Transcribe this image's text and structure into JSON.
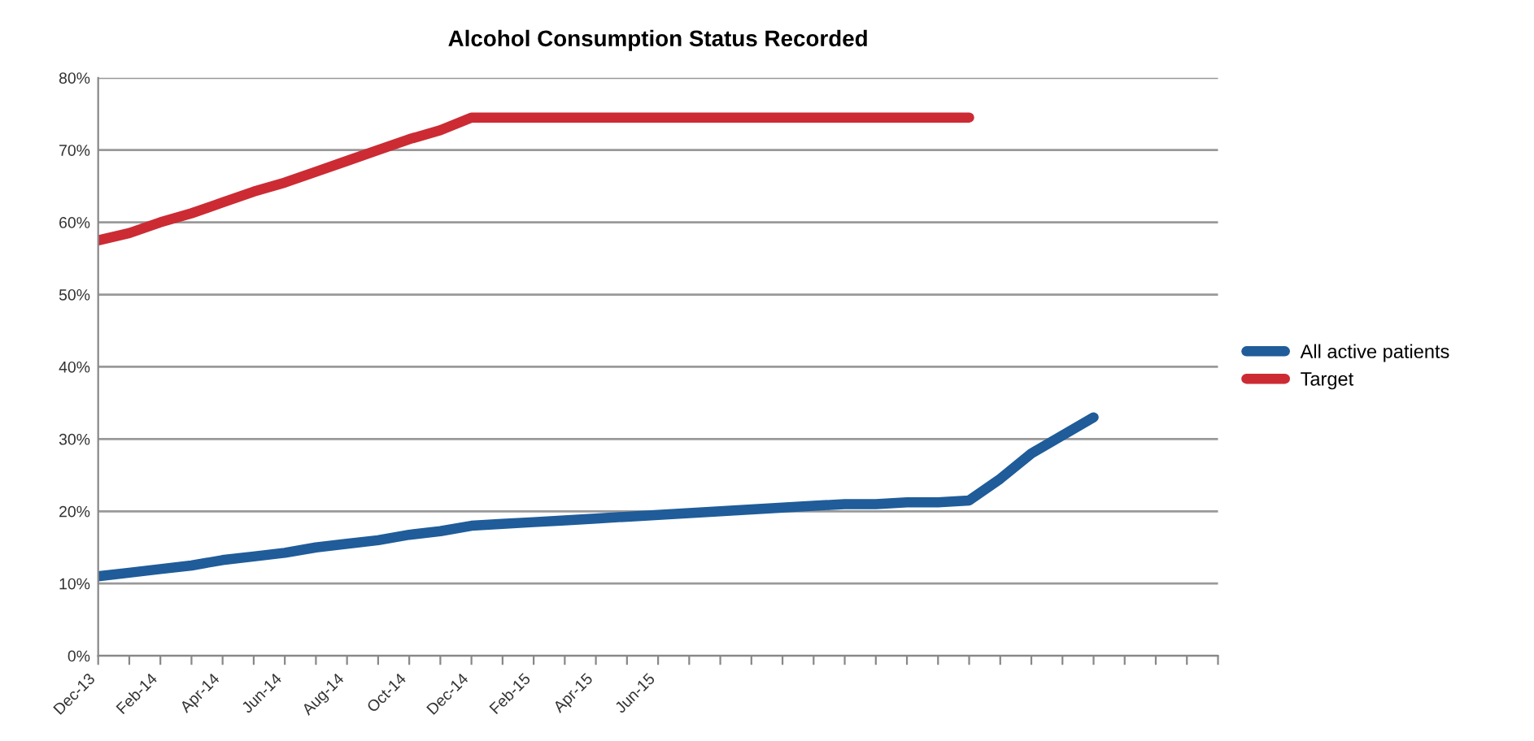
{
  "chart_data": {
    "type": "line",
    "title": "Alcohol Consumption Status Recorded",
    "categories": [
      "Dec-13",
      null,
      "Feb-14",
      null,
      "Apr-14",
      null,
      "Jun-14",
      null,
      "Aug-14",
      null,
      "Oct-14",
      null,
      "Dec-14",
      null,
      "Feb-15",
      null,
      "Apr-15",
      null,
      "Jun-15",
      null,
      null,
      null,
      null,
      null,
      null,
      null,
      null,
      null,
      null,
      null,
      null,
      null,
      null,
      null,
      null,
      null,
      null
    ],
    "series": [
      {
        "name": "All active patients",
        "color": "#1f5c99",
        "values": [
          11,
          11.5,
          12,
          12.5,
          13.25,
          13.75,
          14.25,
          15,
          15.5,
          16,
          16.75,
          17.25,
          18,
          18.25,
          18.5,
          18.75,
          19,
          19.25,
          19.5,
          19.75,
          20,
          20.25,
          20.5,
          20.75,
          21,
          21,
          21.25,
          21.25,
          21.5,
          24.5,
          28,
          30.5,
          33,
          null,
          null,
          null,
          null
        ]
      },
      {
        "name": "Target",
        "color": "#cc2b34",
        "values": [
          57.5,
          58.5,
          60,
          61.25,
          62.75,
          64.25,
          65.5,
          67,
          68.5,
          70,
          71.5,
          72.75,
          74.5,
          74.5,
          74.5,
          74.5,
          74.5,
          74.5,
          74.5,
          74.5,
          74.5,
          74.5,
          74.5,
          74.5,
          74.5,
          74.5,
          74.5,
          74.5,
          74.5,
          null,
          null,
          null,
          null,
          null,
          null,
          null,
          null
        ]
      }
    ],
    "ylim": [
      0,
      80
    ],
    "yticks": [
      {
        "value": 0,
        "label": "0%"
      },
      {
        "value": 10,
        "label": "10%"
      },
      {
        "value": 20,
        "label": "20%"
      },
      {
        "value": 30,
        "label": "30%"
      },
      {
        "value": 40,
        "label": "40%"
      },
      {
        "value": 50,
        "label": "50%"
      },
      {
        "value": 60,
        "label": "60%"
      },
      {
        "value": 70,
        "label": "70%"
      },
      {
        "value": 80,
        "label": "80%"
      }
    ],
    "grid": "y",
    "legend": "right",
    "marker": "none",
    "line_style": "solid"
  }
}
